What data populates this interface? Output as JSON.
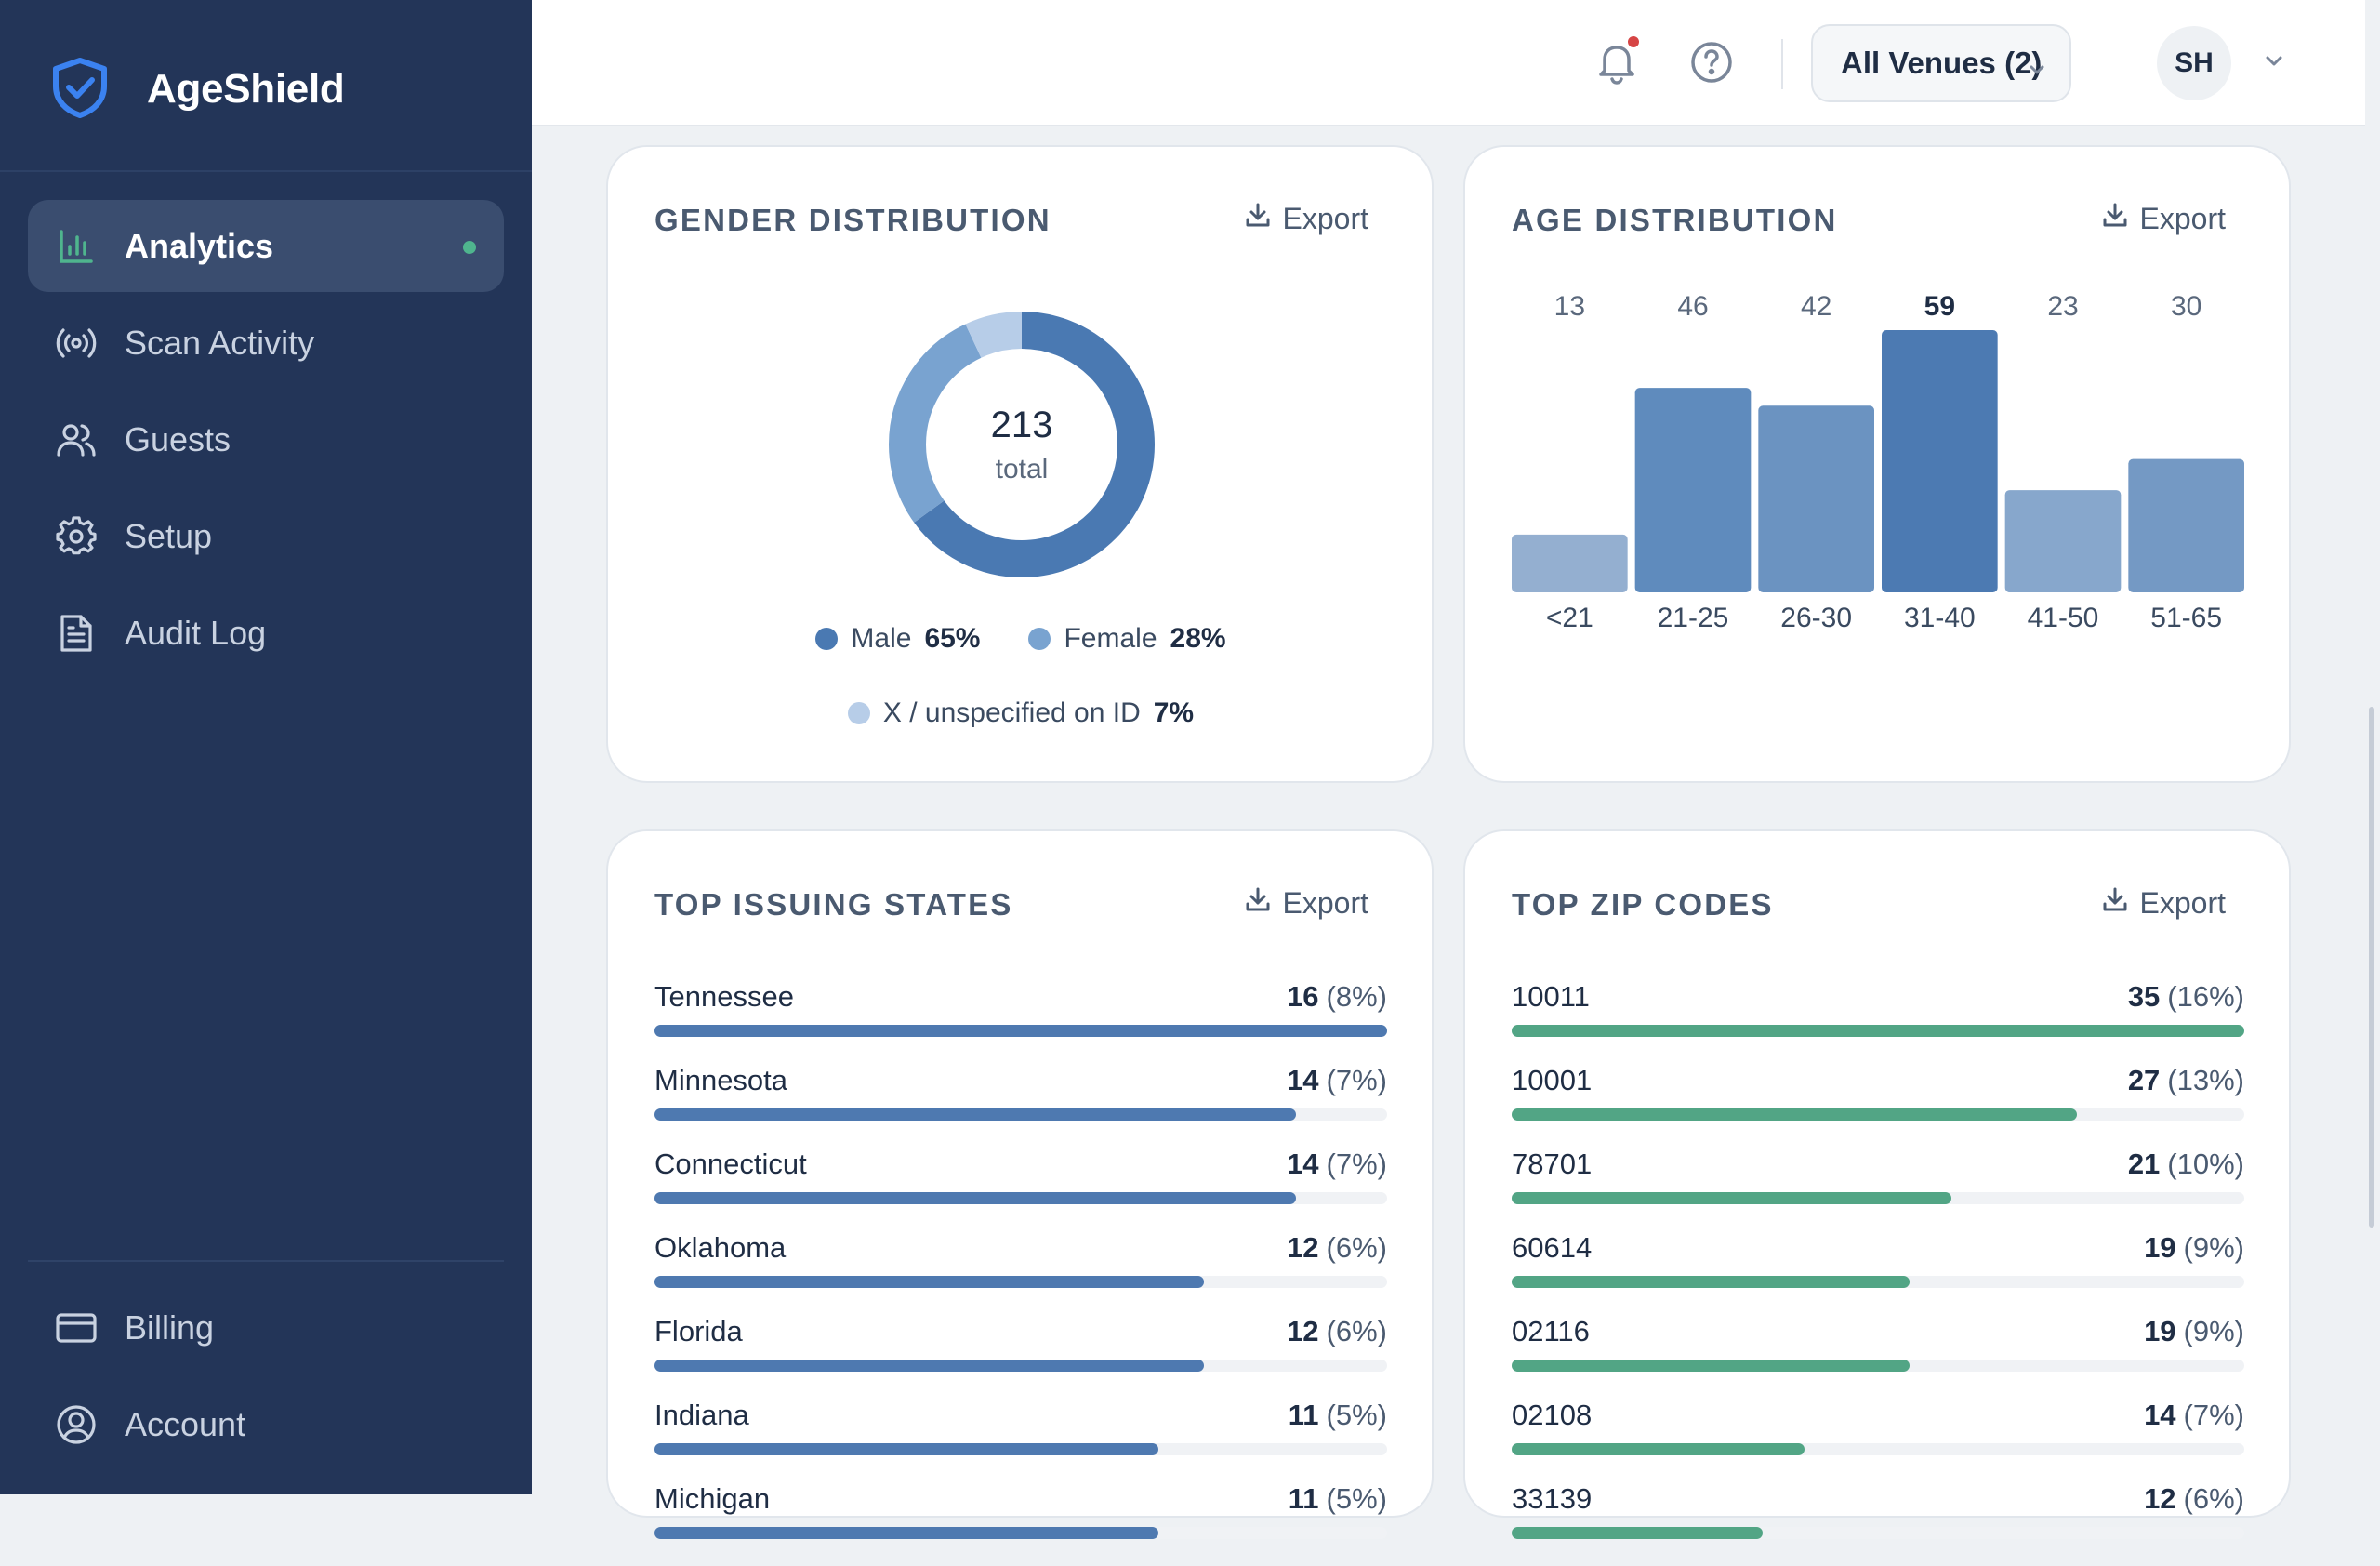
{
  "brand": {
    "name": "AgeShield"
  },
  "sidebar": {
    "items": [
      {
        "label": "Analytics",
        "icon": "bar-chart-icon",
        "active": true
      },
      {
        "label": "Scan Activity",
        "icon": "broadcast-icon"
      },
      {
        "label": "Guests",
        "icon": "users-icon"
      },
      {
        "label": "Setup",
        "icon": "gear-icon"
      },
      {
        "label": "Audit Log",
        "icon": "document-icon"
      }
    ],
    "bottom": [
      {
        "label": "Billing",
        "icon": "credit-card-icon"
      },
      {
        "label": "Account",
        "icon": "user-circle-icon"
      }
    ]
  },
  "topbar": {
    "venue_label": "All Venues (2)",
    "avatar_initials": "SH"
  },
  "export_label": "Export",
  "gender": {
    "title": "GENDER DISTRIBUTION",
    "total": "213",
    "total_label": "total",
    "legend": [
      {
        "name": "Male",
        "value": "65%",
        "pct": 65,
        "color": "#4a79b2"
      },
      {
        "name": "Female",
        "value": "28%",
        "pct": 28,
        "color": "#79a3d0"
      },
      {
        "name": "X / unspecified on ID",
        "value": "7%",
        "pct": 7,
        "color": "#b7cde8"
      }
    ]
  },
  "age": {
    "title": "AGE DISTRIBUTION",
    "chart_data": {
      "type": "bar",
      "categories": [
        "<21",
        "21-25",
        "26-30",
        "31-40",
        "41-50",
        "51-65"
      ],
      "values": [
        13,
        46,
        42,
        59,
        23,
        30
      ],
      "highlight": "31-40",
      "colors": [
        "#94afd0",
        "#5f8bbd",
        "#6b93c1",
        "#4c7ab2",
        "#87a7cc",
        "#7499c4"
      ]
    }
  },
  "states": {
    "title": "TOP ISSUING STATES",
    "color": "#4e79b0",
    "items": [
      {
        "label": "Tennessee",
        "count": "16",
        "pct": "(8%)",
        "value": 16
      },
      {
        "label": "Minnesota",
        "count": "14",
        "pct": "(7%)",
        "value": 14
      },
      {
        "label": "Connecticut",
        "count": "14",
        "pct": "(7%)",
        "value": 14
      },
      {
        "label": "Oklahoma",
        "count": "12",
        "pct": "(6%)",
        "value": 12
      },
      {
        "label": "Florida",
        "count": "12",
        "pct": "(6%)",
        "value": 12
      },
      {
        "label": "Indiana",
        "count": "11",
        "pct": "(5%)",
        "value": 11
      },
      {
        "label": "Michigan",
        "count": "11",
        "pct": "(5%)",
        "value": 11
      }
    ]
  },
  "zips": {
    "title": "TOP ZIP CODES",
    "color": "#52a585",
    "items": [
      {
        "label": "10011",
        "count": "35",
        "pct": "(16%)",
        "value": 35
      },
      {
        "label": "10001",
        "count": "27",
        "pct": "(13%)",
        "value": 27
      },
      {
        "label": "78701",
        "count": "21",
        "pct": "(10%)",
        "value": 21
      },
      {
        "label": "60614",
        "count": "19",
        "pct": "(9%)",
        "value": 19
      },
      {
        "label": "02116",
        "count": "19",
        "pct": "(9%)",
        "value": 19
      },
      {
        "label": "02108",
        "count": "14",
        "pct": "(7%)",
        "value": 14
      },
      {
        "label": "33139",
        "count": "12",
        "pct": "(6%)",
        "value": 12
      }
    ]
  }
}
